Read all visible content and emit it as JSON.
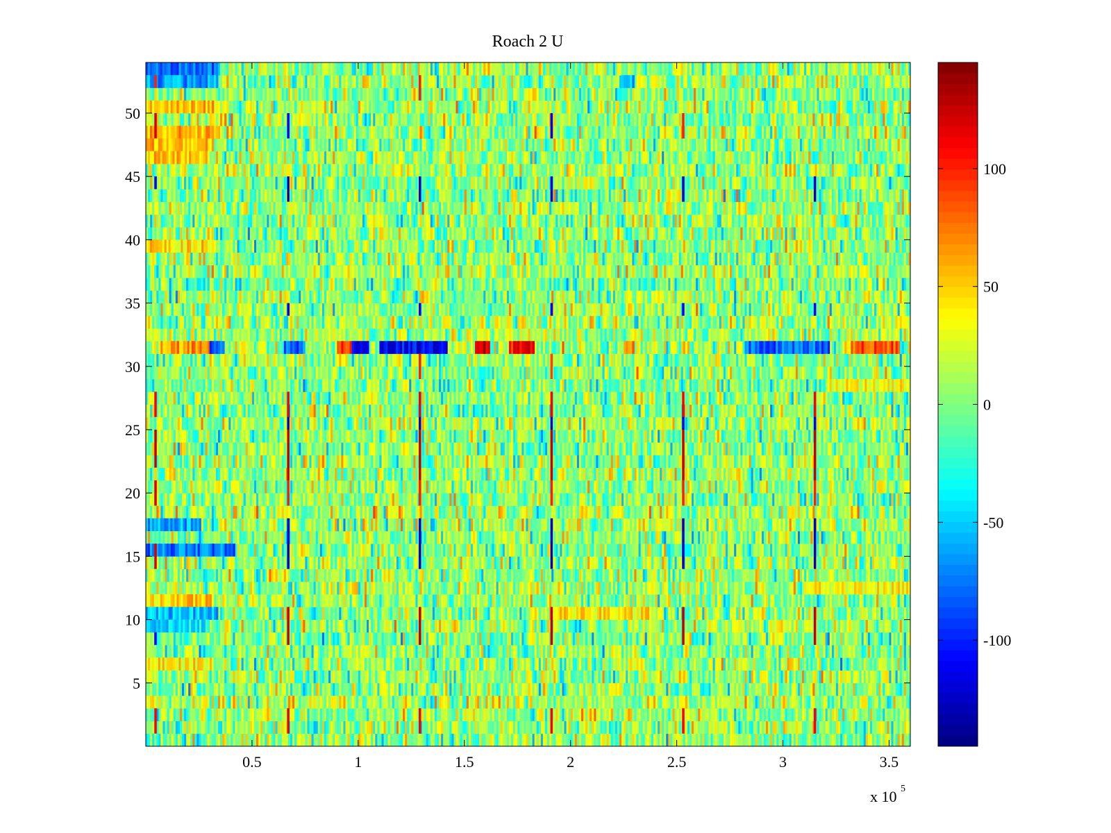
{
  "chart_data": {
    "type": "heatmap",
    "title": "Roach 2 U",
    "colormap": "jet",
    "xlabel": "",
    "ylabel": "",
    "x_range": [
      0,
      360000
    ],
    "y_range": [
      0,
      54
    ],
    "x_multiplier_text": "x 10",
    "x_multiplier_exponent": "5",
    "x_ticks": [
      {
        "value": 0.5,
        "label": "0.5"
      },
      {
        "value": 1.0,
        "label": "1"
      },
      {
        "value": 1.5,
        "label": "1.5"
      },
      {
        "value": 2.0,
        "label": "2"
      },
      {
        "value": 2.5,
        "label": "2.5"
      },
      {
        "value": 3.0,
        "label": "3"
      },
      {
        "value": 3.5,
        "label": "3.5"
      }
    ],
    "y_ticks": [
      {
        "value": 5,
        "label": "5"
      },
      {
        "value": 10,
        "label": "10"
      },
      {
        "value": 15,
        "label": "15"
      },
      {
        "value": 20,
        "label": "20"
      },
      {
        "value": 25,
        "label": "25"
      },
      {
        "value": 30,
        "label": "30"
      },
      {
        "value": 35,
        "label": "35"
      },
      {
        "value": 40,
        "label": "40"
      },
      {
        "value": 45,
        "label": "45"
      },
      {
        "value": 50,
        "label": "50"
      }
    ],
    "colorbar": {
      "range": [
        -145,
        145
      ],
      "ticks": [
        {
          "value": 100,
          "label": "100"
        },
        {
          "value": 50,
          "label": "50"
        },
        {
          "value": 0,
          "label": "0"
        },
        {
          "value": -50,
          "label": "-50"
        },
        {
          "value": -100,
          "label": "-100"
        }
      ]
    },
    "rows": 54,
    "baseline_level": 5,
    "noise_amplitude": 28,
    "features": [
      {
        "row": 32,
        "x_start": 0.06,
        "x_end": 0.35,
        "value": 65
      },
      {
        "row": 32,
        "x_start": 0.3,
        "x_end": 0.37,
        "value": -85
      },
      {
        "row": 32,
        "x_start": 0.65,
        "x_end": 0.75,
        "value": -80
      },
      {
        "row": 32,
        "x_start": 0.9,
        "x_end": 0.98,
        "value": 85
      },
      {
        "row": 32,
        "x_start": 0.97,
        "x_end": 1.05,
        "value": -110
      },
      {
        "row": 32,
        "x_start": 1.1,
        "x_end": 1.42,
        "value": -110
      },
      {
        "row": 32,
        "x_start": 1.55,
        "x_end": 1.62,
        "value": 125
      },
      {
        "row": 32,
        "x_start": 1.71,
        "x_end": 1.83,
        "value": 105
      },
      {
        "row": 32,
        "x_start": 2.25,
        "x_end": 2.3,
        "value": 80
      },
      {
        "row": 32,
        "x_start": 2.82,
        "x_end": 3.22,
        "value": -80
      },
      {
        "row": 32,
        "x_start": 3.32,
        "x_end": 3.55,
        "value": 85
      },
      {
        "row": 54,
        "x_start": 0.0,
        "x_end": 0.34,
        "value": -80
      },
      {
        "row": 53,
        "x_start": 0.0,
        "x_end": 0.34,
        "value": -65
      },
      {
        "row": 53,
        "x_start": 2.24,
        "x_end": 2.3,
        "value": -60
      },
      {
        "row": 51,
        "x_start": 0.0,
        "x_end": 0.32,
        "value": 55
      },
      {
        "row": 49,
        "x_start": 0.0,
        "x_end": 0.34,
        "value": 60
      },
      {
        "row": 48,
        "x_start": 0.0,
        "x_end": 0.32,
        "value": 55
      },
      {
        "row": 47,
        "x_start": 0.0,
        "x_end": 0.3,
        "value": 50
      },
      {
        "row": 40,
        "x_start": 0.0,
        "x_end": 0.32,
        "value": 45
      },
      {
        "row": 18,
        "x_start": 0.0,
        "x_end": 0.26,
        "value": -60
      },
      {
        "row": 16,
        "x_start": 0.0,
        "x_end": 0.42,
        "value": -75
      },
      {
        "row": 12,
        "x_start": 0.0,
        "x_end": 0.32,
        "value": 50
      },
      {
        "row": 11,
        "x_start": 0.0,
        "x_end": 0.34,
        "value": -55
      },
      {
        "row": 10,
        "x_start": 0.0,
        "x_end": 0.3,
        "value": -40
      },
      {
        "row": 7,
        "x_start": 0.0,
        "x_end": 0.32,
        "value": 40
      },
      {
        "row": 11,
        "x_start": 1.9,
        "x_end": 2.4,
        "value": 40
      },
      {
        "row": 13,
        "x_start": 3.1,
        "x_end": 3.6,
        "value": 35
      },
      {
        "row": 29,
        "x_start": 3.2,
        "x_end": 3.6,
        "value": 35
      }
    ],
    "spike_columns": [
      {
        "x": 0.045,
        "rows": [
          [
            2,
            3,
            110
          ],
          [
            9,
            9,
            -110
          ],
          [
            15,
            16,
            120
          ],
          [
            20,
            21,
            120
          ],
          [
            23,
            25,
            125
          ],
          [
            27,
            28,
            110
          ],
          [
            45,
            45,
            -120
          ],
          [
            49,
            50,
            120
          ],
          [
            53,
            53,
            100
          ]
        ]
      },
      {
        "x": 0.67,
        "rows": [
          [
            2,
            3,
            115
          ],
          [
            9,
            11,
            125
          ],
          [
            15,
            18,
            -125
          ],
          [
            20,
            21,
            100
          ],
          [
            22,
            25,
            125
          ],
          [
            26,
            27,
            -120
          ],
          [
            27,
            28,
            110
          ],
          [
            35,
            35,
            -110
          ],
          [
            44,
            45,
            -125
          ],
          [
            49,
            50,
            -110
          ]
        ]
      },
      {
        "x": 1.29,
        "rows": [
          [
            2,
            3,
            110
          ],
          [
            9,
            11,
            125
          ],
          [
            15,
            18,
            -125
          ],
          [
            20,
            21,
            100
          ],
          [
            22,
            25,
            125
          ],
          [
            26,
            27,
            -120
          ],
          [
            27,
            28,
            110
          ],
          [
            30,
            31,
            100
          ],
          [
            35,
            35,
            -110
          ],
          [
            44,
            45,
            -125
          ],
          [
            52,
            53,
            100
          ]
        ]
      },
      {
        "x": 1.91,
        "rows": [
          [
            2,
            3,
            110
          ],
          [
            9,
            11,
            125
          ],
          [
            15,
            18,
            -125
          ],
          [
            20,
            21,
            100
          ],
          [
            22,
            25,
            125
          ],
          [
            26,
            27,
            -120
          ],
          [
            27,
            28,
            110
          ],
          [
            30,
            31,
            90
          ],
          [
            35,
            35,
            -110
          ],
          [
            44,
            45,
            -125
          ],
          [
            49,
            50,
            -110
          ]
        ]
      },
      {
        "x": 2.53,
        "rows": [
          [
            2,
            3,
            110
          ],
          [
            9,
            11,
            125
          ],
          [
            15,
            18,
            -125
          ],
          [
            20,
            21,
            100
          ],
          [
            22,
            25,
            125
          ],
          [
            26,
            27,
            -120
          ],
          [
            27,
            28,
            110
          ],
          [
            35,
            35,
            -110
          ],
          [
            44,
            45,
            -125
          ],
          [
            49,
            50,
            100
          ]
        ]
      },
      {
        "x": 3.15,
        "rows": [
          [
            2,
            3,
            110
          ],
          [
            9,
            11,
            125
          ],
          [
            15,
            18,
            -125
          ],
          [
            20,
            21,
            100
          ],
          [
            22,
            25,
            125
          ],
          [
            26,
            27,
            -120
          ],
          [
            27,
            28,
            110
          ],
          [
            35,
            35,
            -110
          ],
          [
            44,
            45,
            -125
          ]
        ]
      }
    ]
  }
}
